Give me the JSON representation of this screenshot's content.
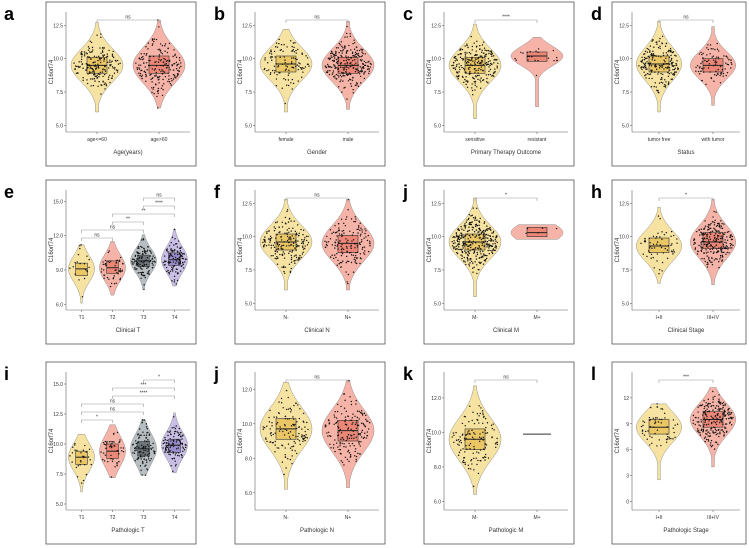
{
  "colors": {
    "yellow": "#f7e3a1",
    "yellow_box": "#e8c15a",
    "salmon": "#f6b3a7",
    "salmon_box": "#ea7f6f",
    "gray": "#b6bec2",
    "gray_box": "#5f6a70",
    "purple": "#c9bfe6",
    "purple_box": "#9383c9",
    "frame": "#555555",
    "bracket": "#999999"
  },
  "chart_data": [
    {
      "letter": "a",
      "type": "violin-box",
      "xlabel": "Age(years)",
      "ylabel": "C16orf74",
      "ylim": [
        4.5,
        13.5
      ],
      "yticks": [
        "5.0",
        "7.5",
        "10.0",
        "12.5"
      ],
      "ytick_values": [
        5,
        7.5,
        10,
        12.5
      ],
      "groups": [
        {
          "name": "age<=60",
          "color": "yellow",
          "median": 9.5,
          "q1": 8.9,
          "q3": 10.1,
          "min": 6.0,
          "max": 12.7,
          "n": 190
        },
        {
          "name": "age>60",
          "color": "salmon",
          "median": 9.5,
          "q1": 8.9,
          "q3": 10.2,
          "min": 6.3,
          "max": 12.9,
          "n": 190
        }
      ],
      "comparisons": [
        {
          "pair": [
            0,
            1
          ],
          "label": "ns",
          "level": 0
        }
      ]
    },
    {
      "letter": "b",
      "type": "violin-box",
      "xlabel": "Gender",
      "ylabel": "C16orf74",
      "ylim": [
        4.5,
        13.5
      ],
      "yticks": [
        "5.0",
        "7.5",
        "10.0",
        "12.5"
      ],
      "ytick_values": [
        5,
        7.5,
        10,
        12.5
      ],
      "groups": [
        {
          "name": "female",
          "color": "yellow",
          "median": 9.6,
          "q1": 9.0,
          "q3": 10.2,
          "min": 6.0,
          "max": 12.2,
          "n": 110
        },
        {
          "name": "male",
          "color": "salmon",
          "median": 9.5,
          "q1": 8.9,
          "q3": 10.1,
          "min": 6.2,
          "max": 12.8,
          "n": 260
        }
      ],
      "comparisons": [
        {
          "pair": [
            0,
            1
          ],
          "label": "ns",
          "level": 0
        }
      ]
    },
    {
      "letter": "c",
      "type": "violin-box",
      "xlabel": "Primary Therapy Outcome",
      "ylabel": "C16orf74",
      "ylim": [
        4.5,
        13.5
      ],
      "yticks": [
        "5.0",
        "7.5",
        "10.0",
        "12.5"
      ],
      "ytick_values": [
        5,
        7.5,
        10,
        12.5
      ],
      "groups": [
        {
          "name": "sensitive",
          "color": "yellow",
          "median": 9.5,
          "q1": 8.9,
          "q3": 10.1,
          "min": 5.5,
          "max": 12.6,
          "n": 230
        },
        {
          "name": "resistant",
          "color": "salmon",
          "median": 10.2,
          "q1": 9.8,
          "q3": 10.5,
          "min": 6.4,
          "max": 11.6,
          "n": 22
        }
      ],
      "comparisons": [
        {
          "pair": [
            0,
            1
          ],
          "label": "****",
          "level": 0
        }
      ]
    },
    {
      "letter": "d",
      "type": "violin-box",
      "xlabel": "Status",
      "ylabel": "C16orf74",
      "ylim": [
        4.5,
        13.5
      ],
      "yticks": [
        "5.0",
        "7.5",
        "10.0",
        "12.5"
      ],
      "ytick_values": [
        5,
        7.5,
        10,
        12.5
      ],
      "groups": [
        {
          "name": "tumor free",
          "color": "yellow",
          "median": 9.6,
          "q1": 9.0,
          "q3": 10.2,
          "min": 6.0,
          "max": 12.8,
          "n": 200
        },
        {
          "name": "with tumor",
          "color": "salmon",
          "median": 9.5,
          "q1": 9.0,
          "q3": 10.0,
          "min": 6.5,
          "max": 12.4,
          "n": 90
        }
      ],
      "comparisons": [
        {
          "pair": [
            0,
            1
          ],
          "label": "ns",
          "level": 0
        }
      ]
    },
    {
      "letter": "e",
      "type": "violin-box",
      "xlabel": "Clinical T",
      "ylabel": "C16orf74",
      "ylim": [
        5.5,
        16
      ],
      "yticks": [
        "6.0",
        "9.0",
        "12.0",
        "15.0"
      ],
      "ytick_values": [
        6,
        9,
        12,
        15
      ],
      "groups": [
        {
          "name": "T1",
          "color": "yellow",
          "median": 9.1,
          "q1": 8.5,
          "q3": 9.6,
          "min": 6.1,
          "max": 11.2,
          "n": 20
        },
        {
          "name": "T2",
          "color": "salmon",
          "median": 9.2,
          "q1": 8.7,
          "q3": 9.8,
          "min": 6.8,
          "max": 11.5,
          "n": 50
        },
        {
          "name": "T3",
          "color": "gray",
          "median": 9.8,
          "q1": 9.3,
          "q3": 10.3,
          "min": 7.3,
          "max": 12.1,
          "n": 120
        },
        {
          "name": "T4",
          "color": "purple",
          "median": 9.9,
          "q1": 9.4,
          "q3": 10.5,
          "min": 7.6,
          "max": 12.6,
          "n": 120
        }
      ],
      "comparisons": [
        {
          "pair": [
            0,
            1
          ],
          "label": "ns",
          "level": 0
        },
        {
          "pair": [
            0,
            2
          ],
          "label": "ns",
          "level": 1
        },
        {
          "pair": [
            1,
            2
          ],
          "label": "**",
          "level": 2
        },
        {
          "pair": [
            1,
            3
          ],
          "label": "**",
          "level": 3
        },
        {
          "pair": [
            2,
            3
          ],
          "label": "****",
          "level": 4
        },
        {
          "pair": [
            2,
            3
          ],
          "label": "ns",
          "level": 5
        }
      ]
    },
    {
      "letter": "f",
      "type": "violin-box",
      "xlabel": "Clinical N",
      "ylabel": "C16orf74",
      "ylim": [
        4.5,
        13.5
      ],
      "yticks": [
        "5.0",
        "7.5",
        "10.0",
        "12.5"
      ],
      "ytick_values": [
        5,
        7.5,
        10,
        12.5
      ],
      "groups": [
        {
          "name": "N-",
          "color": "yellow",
          "median": 9.6,
          "q1": 9.0,
          "q3": 10.2,
          "min": 6.0,
          "max": 12.8,
          "n": 190
        },
        {
          "name": "N+",
          "color": "salmon",
          "median": 9.5,
          "q1": 8.8,
          "q3": 10.1,
          "min": 6.0,
          "max": 12.8,
          "n": 160
        }
      ],
      "comparisons": [
        {
          "pair": [
            0,
            1
          ],
          "label": "ns",
          "level": 0
        }
      ]
    },
    {
      "letter": "j",
      "type": "violin-box",
      "xlabel": "Clinical M",
      "ylabel": "C16orf74",
      "ylim": [
        4.5,
        13.5
      ],
      "yticks": [
        "5.0",
        "7.5",
        "10.0",
        "12.5"
      ],
      "ytick_values": [
        5,
        7.5,
        10,
        12.5
      ],
      "groups": [
        {
          "name": "M-",
          "color": "yellow",
          "median": 9.6,
          "q1": 9.0,
          "q3": 10.2,
          "min": 5.5,
          "max": 12.9,
          "n": 330
        },
        {
          "name": "M+",
          "color": "salmon",
          "median": 10.3,
          "q1": 10.0,
          "q3": 10.7,
          "min": 9.8,
          "max": 10.9,
          "n": 5
        }
      ],
      "comparisons": [
        {
          "pair": [
            0,
            1
          ],
          "label": "*",
          "level": 0
        }
      ]
    },
    {
      "letter": "h",
      "type": "violin-box",
      "xlabel": "Clinical Stage",
      "ylabel": "C16orf74",
      "ylim": [
        4.5,
        13.5
      ],
      "yticks": [
        "5.0",
        "7.5",
        "10.0",
        "12.5"
      ],
      "ytick_values": [
        5,
        7.5,
        10,
        12.5
      ],
      "groups": [
        {
          "name": "I+II",
          "color": "yellow",
          "median": 9.3,
          "q1": 8.8,
          "q3": 9.9,
          "min": 6.5,
          "max": 12.2,
          "n": 60
        },
        {
          "name": "III+IV",
          "color": "salmon",
          "median": 9.6,
          "q1": 9.1,
          "q3": 10.3,
          "min": 6.4,
          "max": 12.8,
          "n": 240
        }
      ],
      "comparisons": [
        {
          "pair": [
            0,
            1
          ],
          "label": "*",
          "level": 0
        }
      ]
    },
    {
      "letter": "i",
      "type": "violin-box",
      "xlabel": "Pathologic T",
      "ylabel": "C16orf74",
      "ylim": [
        4.5,
        16
      ],
      "yticks": [
        "5.0",
        "7.5",
        "10.0",
        "12.5",
        "15.0"
      ],
      "ytick_values": [
        5,
        7.5,
        10,
        12.5,
        15
      ],
      "groups": [
        {
          "name": "T1",
          "color": "yellow",
          "median": 8.9,
          "q1": 8.3,
          "q3": 9.4,
          "min": 6.0,
          "max": 10.8,
          "n": 30
        },
        {
          "name": "T2",
          "color": "salmon",
          "median": 9.4,
          "q1": 8.8,
          "q3": 10.0,
          "min": 7.2,
          "max": 11.6,
          "n": 50
        },
        {
          "name": "T3",
          "color": "gray",
          "median": 9.6,
          "q1": 9.0,
          "q3": 10.2,
          "min": 7.4,
          "max": 12.0,
          "n": 110
        },
        {
          "name": "T4",
          "color": "purple",
          "median": 9.9,
          "q1": 9.3,
          "q3": 10.4,
          "min": 7.6,
          "max": 12.6,
          "n": 110
        }
      ],
      "comparisons": [
        {
          "pair": [
            0,
            1
          ],
          "label": "*",
          "level": 0
        },
        {
          "pair": [
            0,
            2
          ],
          "label": "ns",
          "level": 1
        },
        {
          "pair": [
            0,
            2
          ],
          "label": "ns",
          "level": 2
        },
        {
          "pair": [
            1,
            3
          ],
          "label": "****",
          "level": 3
        },
        {
          "pair": [
            1,
            3
          ],
          "label": "***",
          "level": 4
        },
        {
          "pair": [
            2,
            3
          ],
          "label": "*",
          "level": 5
        }
      ]
    },
    {
      "letter": "j",
      "type": "violin-box",
      "xlabel": "Pathologic N",
      "ylabel": "C16orf74",
      "ylim": [
        5.0,
        13.0
      ],
      "yticks": [
        "6.0",
        "8.0",
        "10.0",
        "12.0"
      ],
      "ytick_values": [
        6,
        8,
        10,
        12
      ],
      "groups": [
        {
          "name": "N-",
          "color": "yellow",
          "median": 9.7,
          "q1": 9.1,
          "q3": 10.3,
          "min": 6.2,
          "max": 12.4,
          "n": 130
        },
        {
          "name": "N+",
          "color": "salmon",
          "median": 9.6,
          "q1": 9.0,
          "q3": 10.2,
          "min": 6.3,
          "max": 12.5,
          "n": 170
        }
      ],
      "comparisons": [
        {
          "pair": [
            0,
            1
          ],
          "label": "ns",
          "level": 0
        }
      ]
    },
    {
      "letter": "k",
      "type": "violin-box",
      "xlabel": "Pathologic M",
      "ylabel": "C16orf74",
      "ylim": [
        5.5,
        13.5
      ],
      "yticks": [
        "6.0",
        "8.0",
        "10.0",
        "12.0"
      ],
      "ytick_values": [
        6,
        8,
        10,
        12
      ],
      "groups": [
        {
          "name": "M-",
          "color": "yellow",
          "median": 9.6,
          "q1": 9.0,
          "q3": 10.2,
          "min": 6.4,
          "max": 12.7,
          "n": 130
        },
        {
          "name": "M+",
          "color": "salmon",
          "median": 9.9,
          "q1": 9.9,
          "q3": 9.9,
          "min": 9.9,
          "max": 9.9,
          "n": 1
        }
      ],
      "comparisons": [
        {
          "pair": [
            0,
            1
          ],
          "label": "ns",
          "level": 0
        }
      ]
    },
    {
      "letter": "l",
      "type": "violin-box",
      "xlabel": "Pathologic Stage",
      "ylabel": "C16orf74",
      "ylim": [
        -1,
        15
      ],
      "yticks": [
        "0",
        "3",
        "6",
        "9",
        "12"
      ],
      "ytick_values": [
        0,
        3,
        6,
        9,
        12
      ],
      "groups": [
        {
          "name": "I+II",
          "color": "yellow",
          "median": 8.6,
          "q1": 7.8,
          "q3": 9.5,
          "min": 2.5,
          "max": 11.3,
          "n": 60
        },
        {
          "name": "III+IV",
          "color": "salmon",
          "median": 9.5,
          "q1": 8.6,
          "q3": 10.4,
          "min": 4.0,
          "max": 13.2,
          "n": 220
        }
      ],
      "comparisons": [
        {
          "pair": [
            0,
            1
          ],
          "label": "***",
          "level": 0
        }
      ]
    }
  ]
}
